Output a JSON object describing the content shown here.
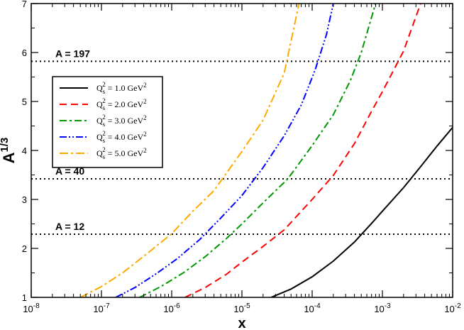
{
  "chart_data": {
    "type": "line",
    "xscale": "log",
    "xlim": [
      1e-08,
      0.01
    ],
    "ylim": [
      1,
      7
    ],
    "xlabel": "x",
    "ylabel_base": "A",
    "ylabel_sup": "1/3",
    "xticks": [
      {
        "value": 1e-08,
        "base": "10",
        "exp": "-8"
      },
      {
        "value": 1e-07,
        "base": "10",
        "exp": "-7"
      },
      {
        "value": 1e-06,
        "base": "10",
        "exp": "-6"
      },
      {
        "value": 1e-05,
        "base": "10",
        "exp": "-5"
      },
      {
        "value": 0.0001,
        "base": "10",
        "exp": "-4"
      },
      {
        "value": 0.001,
        "base": "10",
        "exp": "-3"
      },
      {
        "value": 0.01,
        "base": "10",
        "exp": "-2"
      }
    ],
    "yticks": [
      {
        "value": 1,
        "label": "1"
      },
      {
        "value": 2,
        "label": "2"
      },
      {
        "value": 3,
        "label": "3"
      },
      {
        "value": 4,
        "label": "4"
      },
      {
        "value": 5,
        "label": "5"
      },
      {
        "value": 6,
        "label": "6"
      },
      {
        "value": 7,
        "label": "7"
      }
    ],
    "reference_lines": [
      {
        "y": 5.82,
        "label": "A = 197"
      },
      {
        "y": 3.42,
        "label": "A = 40"
      },
      {
        "y": 2.29,
        "label": "A = 12"
      }
    ],
    "series": [
      {
        "name_main": "Q",
        "name_sub": "s",
        "name_sup": "2",
        "name_rest": " = 1.0 GeV",
        "name_unit_sup": "2",
        "color": "#000000",
        "dash": "",
        "points": [
          [
            2.6e-05,
            1.0
          ],
          [
            5e-05,
            1.17
          ],
          [
            0.0001,
            1.42
          ],
          [
            0.0002,
            1.74
          ],
          [
            0.0004,
            2.13
          ],
          [
            0.0007,
            2.51
          ],
          [
            0.001,
            2.76
          ],
          [
            0.002,
            3.24
          ],
          [
            0.0035,
            3.67
          ],
          [
            0.006,
            4.09
          ],
          [
            0.01,
            4.47
          ]
        ]
      },
      {
        "name_main": "Q",
        "name_sub": "s",
        "name_sup": "2",
        "name_rest": " = 2.0 GeV",
        "name_unit_sup": "2",
        "color": "#ff0000",
        "dash": "10,6",
        "points": [
          [
            1.55e-06,
            1.0
          ],
          [
            3e-06,
            1.2
          ],
          [
            6e-06,
            1.47
          ],
          [
            1e-05,
            1.72
          ],
          [
            2e-05,
            2.04
          ],
          [
            4e-05,
            2.38
          ],
          [
            0.0001,
            3.0
          ],
          [
            0.0002,
            3.49
          ],
          [
            0.0004,
            4.14
          ],
          [
            0.0007,
            4.8
          ],
          [
            0.001,
            5.2
          ],
          [
            0.002,
            6.03
          ],
          [
            0.0035,
            7.0
          ]
        ]
      },
      {
        "name_main": "Q",
        "name_sub": "s",
        "name_sup": "2",
        "name_rest": " = 3.0 GeV",
        "name_unit_sup": "2",
        "color": "#009900",
        "dash": "10,4,3,4",
        "points": [
          [
            3.5e-07,
            1.0
          ],
          [
            7e-07,
            1.22
          ],
          [
            1.5e-06,
            1.51
          ],
          [
            3e-06,
            1.83
          ],
          [
            6e-06,
            2.2
          ],
          [
            1e-05,
            2.5
          ],
          [
            2e-05,
            2.93
          ],
          [
            4.5e-05,
            3.42
          ],
          [
            0.0001,
            4.1
          ],
          [
            0.0002,
            4.73
          ],
          [
            0.00035,
            5.43
          ],
          [
            0.0005,
            6.0
          ],
          [
            0.0008,
            7.0
          ]
        ]
      },
      {
        "name_main": "Q",
        "name_sub": "s",
        "name_sup": "2",
        "name_rest": " = 4.0 GeV",
        "name_unit_sup": "2",
        "color": "#0000ff",
        "dash": "10,3,2,3,2,3",
        "points": [
          [
            1.6e-07,
            1.0
          ],
          [
            3e-07,
            1.2
          ],
          [
            6e-07,
            1.48
          ],
          [
            1.2e-06,
            1.79
          ],
          [
            2.5e-06,
            2.18
          ],
          [
            5e-06,
            2.62
          ],
          [
            1e-05,
            3.08
          ],
          [
            2e-05,
            3.65
          ],
          [
            4e-05,
            4.3
          ],
          [
            7e-05,
            4.93
          ],
          [
            0.00011,
            5.64
          ],
          [
            0.00016,
            6.37
          ],
          [
            0.0002,
            7.0
          ]
        ]
      },
      {
        "name_main": "Q",
        "name_sub": "s",
        "name_sup": "2",
        "name_rest": " = 5.0 GeV",
        "name_unit_sup": "2",
        "color": "#ffaa00",
        "dash": "12,4,3,4",
        "points": [
          [
            5e-08,
            1.0
          ],
          [
            1e-07,
            1.22
          ],
          [
            2e-07,
            1.5
          ],
          [
            5e-07,
            1.95
          ],
          [
            1e-06,
            2.3
          ],
          [
            2e-06,
            2.76
          ],
          [
            4e-06,
            3.18
          ],
          [
            1e-05,
            3.98
          ],
          [
            2e-05,
            4.62
          ],
          [
            4e-05,
            5.58
          ],
          [
            6.5e-05,
            7.0
          ]
        ]
      }
    ],
    "legend_position": "upper-left"
  }
}
